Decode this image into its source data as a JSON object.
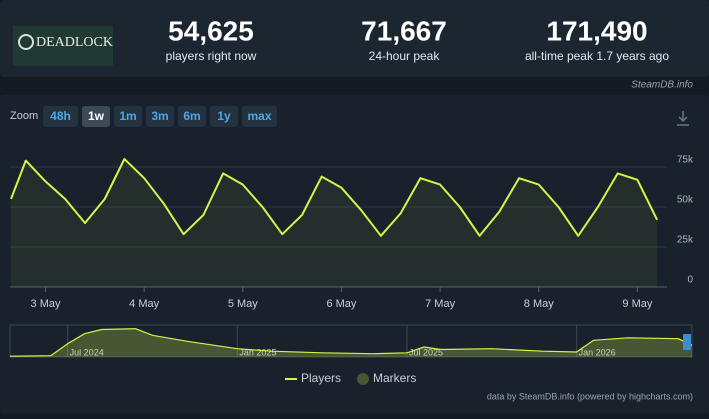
{
  "header": {
    "game": "DEADLOCK",
    "stats": [
      {
        "value": "54,625",
        "label": "players right now"
      },
      {
        "value": "71,667",
        "label": "24-hour peak"
      },
      {
        "value": "171,490",
        "label": "all-time peak 1.7 years ago"
      }
    ],
    "source": "SteamDB.info"
  },
  "controls": {
    "zoom_label": "Zoom",
    "zoom": [
      "48h",
      "1w",
      "1m",
      "3m",
      "6m",
      "1y",
      "max"
    ],
    "active_index": 1
  },
  "chart_data": [
    {
      "type": "line",
      "xlim": [
        2.64,
        9.3
      ],
      "ylim": [
        0,
        95000
      ],
      "xticks": [
        {
          "value": 3,
          "label": "3 May"
        },
        {
          "value": 4,
          "label": "4 May"
        },
        {
          "value": 5,
          "label": "5 May"
        },
        {
          "value": 6,
          "label": "6 May"
        },
        {
          "value": 7,
          "label": "7 May"
        },
        {
          "value": 8,
          "label": "8 May"
        },
        {
          "value": 9,
          "label": "9 May"
        }
      ],
      "yticks": [
        0,
        {
          "value": 25000,
          "label": "25k"
        },
        {
          "value": 50000,
          "label": "50k"
        },
        {
          "value": 75000,
          "label": "75k"
        }
      ],
      "grid": true,
      "x": [
        2.65,
        2.8,
        3.0,
        3.2,
        3.4,
        3.6,
        3.8,
        4.0,
        4.2,
        4.4,
        4.6,
        4.8,
        5.0,
        5.2,
        5.4,
        5.6,
        5.8,
        6.0,
        6.2,
        6.4,
        6.6,
        6.8,
        7.0,
        7.2,
        7.4,
        7.6,
        7.8,
        8.0,
        8.2,
        8.4,
        8.6,
        8.8,
        9.0,
        9.2
      ],
      "series": [
        {
          "name": "Players",
          "color": "#d4f547",
          "values": [
            55000,
            79000,
            66000,
            55000,
            40000,
            55000,
            80000,
            68000,
            52000,
            33000,
            45000,
            71000,
            64000,
            50000,
            33000,
            45000,
            69000,
            62000,
            48000,
            32000,
            46000,
            68000,
            64000,
            50000,
            32000,
            47000,
            68000,
            64000,
            50000,
            32000,
            50000,
            71000,
            67000,
            42000
          ]
        }
      ]
    },
    {
      "type": "area",
      "xlim": [
        2024.33,
        2026.34
      ],
      "ylim": [
        0,
        180000
      ],
      "xticks": [
        {
          "value": 2024.5,
          "label": "Jul 2024"
        },
        {
          "value": 2025.0,
          "label": "Jan 2025"
        },
        {
          "value": 2025.5,
          "label": "Jul 2025"
        },
        {
          "value": 2026.0,
          "label": "Jan 2026"
        }
      ],
      "x": [
        2024.33,
        2024.45,
        2024.5,
        2024.55,
        2024.6,
        2024.7,
        2024.75,
        2024.85,
        2025.0,
        2025.1,
        2025.25,
        2025.4,
        2025.5,
        2025.55,
        2025.6,
        2025.75,
        2025.9,
        2026.0,
        2026.05,
        2026.15,
        2026.3,
        2026.34
      ],
      "series": [
        {
          "name": "Players",
          "color": "#d4f547",
          "values": [
            5000,
            8000,
            80000,
            140000,
            165000,
            170000,
            130000,
            95000,
            50000,
            35000,
            25000,
            20000,
            25000,
            60000,
            45000,
            50000,
            35000,
            30000,
            100000,
            115000,
            110000,
            70000
          ]
        }
      ]
    }
  ],
  "markers_label": "Markers",
  "credit": "data by SteamDB.info (powered by highcharts.com)"
}
